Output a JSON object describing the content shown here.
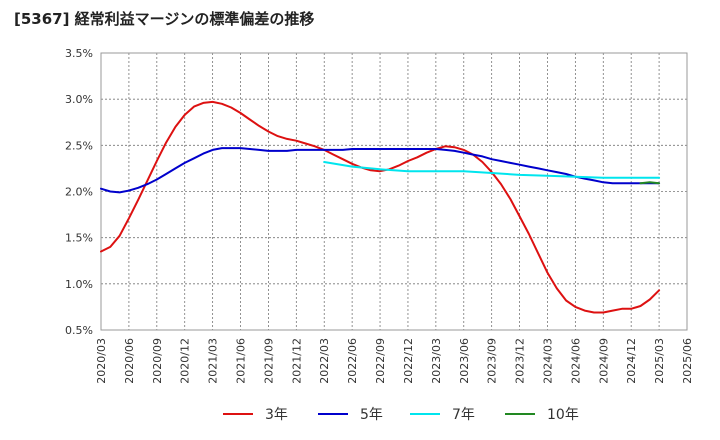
{
  "title": "[5367]  経常利益マージンの標準偏差の推移",
  "chart_data": {
    "type": "line",
    "title": "[5367]  経常利益マージンの標準偏差の推移",
    "xlabel": "",
    "ylabel": "",
    "ylim": [
      0.5,
      3.5
    ],
    "y_ticks": [
      "3.5%",
      "3.0%",
      "2.5%",
      "2.0%",
      "1.5%",
      "1.0%",
      "0.5%"
    ],
    "y_tick_values": [
      3.5,
      3.0,
      2.5,
      2.0,
      1.5,
      1.0,
      0.5
    ],
    "x_ticks": [
      "2020/03",
      "2020/06",
      "2020/09",
      "2020/12",
      "2021/03",
      "2021/06",
      "2021/09",
      "2021/12",
      "2022/03",
      "2022/06",
      "2022/09",
      "2022/12",
      "2023/03",
      "2023/06",
      "2023/09",
      "2023/12",
      "2024/03",
      "2024/06",
      "2024/09",
      "2024/12",
      "2025/03",
      "2025/06"
    ],
    "grid": true,
    "legend_position": "bottom",
    "series": [
      {
        "name": "3年",
        "color": "#dd1111",
        "x": [
          "2020/03",
          "2020/04",
          "2020/05",
          "2020/06",
          "2020/07",
          "2020/08",
          "2020/09",
          "2020/10",
          "2020/11",
          "2020/12",
          "2021/01",
          "2021/02",
          "2021/03",
          "2021/04",
          "2021/05",
          "2021/06",
          "2021/07",
          "2021/08",
          "2021/09",
          "2021/10",
          "2021/11",
          "2021/12",
          "2022/01",
          "2022/02",
          "2022/03",
          "2022/04",
          "2022/05",
          "2022/06",
          "2022/07",
          "2022/08",
          "2022/09",
          "2022/10",
          "2022/11",
          "2022/12",
          "2023/01",
          "2023/02",
          "2023/03",
          "2023/04",
          "2023/05",
          "2023/06",
          "2023/07",
          "2023/08",
          "2023/09",
          "2023/10",
          "2023/11",
          "2023/12",
          "2024/01",
          "2024/02",
          "2024/03",
          "2024/04",
          "2024/05",
          "2024/06",
          "2024/07",
          "2024/08",
          "2024/09",
          "2024/10",
          "2024/11",
          "2024/12",
          "2025/01",
          "2025/02",
          "2025/03"
        ],
        "values": [
          1.35,
          1.4,
          1.52,
          1.71,
          1.91,
          2.12,
          2.33,
          2.53,
          2.7,
          2.83,
          2.92,
          2.96,
          2.97,
          2.95,
          2.91,
          2.85,
          2.78,
          2.71,
          2.65,
          2.6,
          2.57,
          2.55,
          2.52,
          2.49,
          2.45,
          2.4,
          2.35,
          2.3,
          2.26,
          2.23,
          2.22,
          2.24,
          2.28,
          2.33,
          2.37,
          2.42,
          2.46,
          2.49,
          2.48,
          2.45,
          2.4,
          2.32,
          2.21,
          2.08,
          1.92,
          1.73,
          1.54,
          1.33,
          1.12,
          0.95,
          0.82,
          0.75,
          0.71,
          0.69,
          0.69,
          0.71,
          0.73,
          0.73,
          0.76,
          0.83,
          0.93
        ]
      },
      {
        "name": "5年",
        "color": "#0000cc",
        "x": [
          "2020/03",
          "2020/04",
          "2020/05",
          "2020/06",
          "2020/07",
          "2020/08",
          "2020/09",
          "2020/10",
          "2020/11",
          "2020/12",
          "2021/01",
          "2021/02",
          "2021/03",
          "2021/04",
          "2021/05",
          "2021/06",
          "2021/07",
          "2021/08",
          "2021/09",
          "2021/10",
          "2021/11",
          "2021/12",
          "2022/01",
          "2022/02",
          "2022/03",
          "2022/04",
          "2022/05",
          "2022/06",
          "2022/07",
          "2022/08",
          "2022/09",
          "2022/10",
          "2022/11",
          "2022/12",
          "2023/01",
          "2023/02",
          "2023/03",
          "2023/04",
          "2023/05",
          "2023/06",
          "2023/07",
          "2023/08",
          "2023/09",
          "2023/10",
          "2023/11",
          "2023/12",
          "2024/01",
          "2024/02",
          "2024/03",
          "2024/04",
          "2024/05",
          "2024/06",
          "2024/07",
          "2024/08",
          "2024/09",
          "2024/10",
          "2024/11",
          "2024/12",
          "2025/01",
          "2025/02",
          "2025/03"
        ],
        "values": [
          2.03,
          2.0,
          1.99,
          2.01,
          2.04,
          2.08,
          2.13,
          2.19,
          2.25,
          2.31,
          2.36,
          2.41,
          2.45,
          2.47,
          2.47,
          2.47,
          2.46,
          2.45,
          2.44,
          2.44,
          2.44,
          2.45,
          2.45,
          2.45,
          2.45,
          2.45,
          2.45,
          2.46,
          2.46,
          2.46,
          2.46,
          2.46,
          2.46,
          2.46,
          2.46,
          2.46,
          2.46,
          2.45,
          2.44,
          2.42,
          2.4,
          2.38,
          2.35,
          2.33,
          2.31,
          2.29,
          2.27,
          2.25,
          2.23,
          2.21,
          2.19,
          2.16,
          2.14,
          2.12,
          2.1,
          2.09,
          2.09,
          2.09,
          2.09,
          2.09,
          2.09
        ]
      },
      {
        "name": "7年",
        "color": "#00e5ee",
        "x": [
          "2022/03",
          "2022/06",
          "2022/09",
          "2022/12",
          "2023/03",
          "2023/06",
          "2023/09",
          "2023/12",
          "2024/03",
          "2024/06",
          "2024/09",
          "2024/12",
          "2025/03"
        ],
        "values": [
          2.32,
          2.27,
          2.24,
          2.22,
          2.22,
          2.22,
          2.2,
          2.18,
          2.17,
          2.16,
          2.15,
          2.15,
          2.15
        ]
      },
      {
        "name": "10年",
        "color": "#228822",
        "x": [
          "2025/01",
          "2025/02",
          "2025/03"
        ],
        "values": [
          2.09,
          2.1,
          2.09
        ]
      }
    ]
  }
}
